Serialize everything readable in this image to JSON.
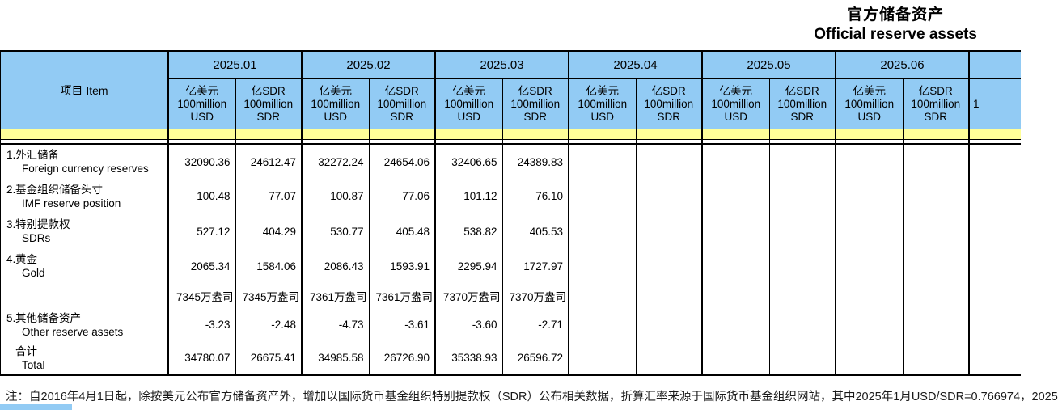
{
  "page_title": {
    "zh": "官方储备资产",
    "en": "Official reserve assets"
  },
  "table": {
    "item_header": "项目  Item",
    "months": [
      "2025.01",
      "2025.02",
      "2025.03",
      "2025.04",
      "2025.05",
      "2025.06"
    ],
    "usd_unit": "亿美元\n100million\nUSD",
    "sdr_unit": "亿SDR\n100million\nSDR",
    "next_column_partial": "1",
    "rows": [
      {
        "no": "1.",
        "zh": "外汇储备",
        "en": "Foreign currency reserves",
        "values": [
          "32090.36",
          "24612.47",
          "32272.24",
          "24654.06",
          "32406.65",
          "24389.83",
          "",
          "",
          "",
          "",
          "",
          ""
        ]
      },
      {
        "no": "2.",
        "zh": "基金组织储备头寸",
        "en": "IMF reserve position",
        "values": [
          "100.48",
          "77.07",
          "100.87",
          "77.06",
          "101.12",
          "76.10",
          "",
          "",
          "",
          "",
          "",
          ""
        ]
      },
      {
        "no": "3.",
        "zh": "特别提款权",
        "en": "SDRs",
        "values": [
          "527.12",
          "404.29",
          "530.77",
          "405.48",
          "538.82",
          "405.53",
          "",
          "",
          "",
          "",
          "",
          ""
        ]
      },
      {
        "no": "4.",
        "zh": "黄金",
        "en": "Gold",
        "values": [
          "2065.34",
          "1584.06",
          "2086.43",
          "1593.91",
          "2295.94",
          "1727.97",
          "",
          "",
          "",
          "",
          "",
          ""
        ]
      },
      {
        "no": "",
        "zh": "",
        "en": "",
        "values": [
          "7345万盎司",
          "7345万盎司",
          "7361万盎司",
          "7361万盎司",
          "7370万盎司",
          "7370万盎司",
          "",
          "",
          "",
          "",
          "",
          ""
        ]
      },
      {
        "no": "5.",
        "zh": "其他储备资产",
        "en": "Other reserve assets",
        "values": [
          "-3.23",
          "-2.48",
          "-4.73",
          "-3.61",
          "-3.60",
          "-2.71",
          "",
          "",
          "",
          "",
          "",
          ""
        ]
      },
      {
        "no": "",
        "zh": "合计",
        "en": "Total",
        "values": [
          "34780.07",
          "26675.41",
          "34985.58",
          "26726.90",
          "35338.93",
          "26596.72",
          "",
          "",
          "",
          "",
          "",
          ""
        ]
      }
    ]
  },
  "note": "注：自2016年4月1日起，除按美元公布官方储备资产外，增加以国际货币基金组织特别提款权（SDR）公布相关数据，折算汇率来源于国际货币基金组织网站，其中2025年1月USD/SDR=0.766974，2025",
  "colors": {
    "header_blue": "#92cbf4",
    "band_yellow": "#ffff99",
    "border": "#000000"
  }
}
